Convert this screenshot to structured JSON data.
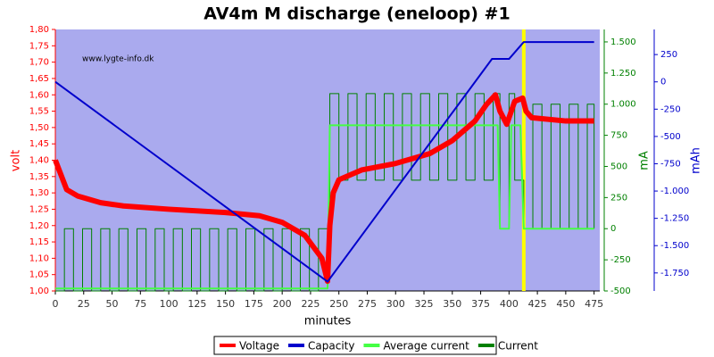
{
  "chart_data": {
    "type": "line",
    "title": "AV4m M discharge (eneloop) #1",
    "watermark": "www.lygte-info.dk",
    "xlabel": "minutes",
    "ylabel": "volt",
    "y2label": "mA",
    "y3label": "mAh",
    "xlim": [
      0,
      480
    ],
    "xticks": [
      0,
      25,
      50,
      75,
      100,
      125,
      150,
      175,
      200,
      225,
      250,
      275,
      300,
      325,
      350,
      375,
      400,
      425,
      450,
      475
    ],
    "ylim": [
      1.0,
      1.8
    ],
    "yticks": [
      {
        "value": 1.0,
        "label": "1,00"
      },
      {
        "value": 1.05,
        "label": "1,05"
      },
      {
        "value": 1.1,
        "label": "1,10"
      },
      {
        "value": 1.15,
        "label": "1,15"
      },
      {
        "value": 1.2,
        "label": "1,20"
      },
      {
        "value": 1.25,
        "label": "1,25"
      },
      {
        "value": 1.3,
        "label": "1,30"
      },
      {
        "value": 1.35,
        "label": "1,35"
      },
      {
        "value": 1.4,
        "label": "1,40"
      },
      {
        "value": 1.45,
        "label": "1,45"
      },
      {
        "value": 1.5,
        "label": "1,50"
      },
      {
        "value": 1.55,
        "label": "1,55"
      },
      {
        "value": 1.6,
        "label": "1,60"
      },
      {
        "value": 1.65,
        "label": "1,65"
      },
      {
        "value": 1.7,
        "label": "1,70"
      },
      {
        "value": 1.75,
        "label": "1,75"
      },
      {
        "value": 1.8,
        "label": "1,80"
      }
    ],
    "y2lim": [
      -500,
      1600
    ],
    "y2ticks": [
      -500,
      -250,
      0,
      250,
      500,
      750,
      {
        "value": 1000,
        "label": "1.000"
      },
      {
        "value": 1250,
        "label": "1.250"
      },
      {
        "value": 1500,
        "label": "1.500"
      }
    ],
    "y3lim": [
      -1915,
      480
    ],
    "y3ticks": [
      {
        "value": -1750,
        "label": "-1.750"
      },
      {
        "value": -1500,
        "label": "-1.500"
      },
      {
        "value": -1250,
        "label": "-1.250"
      },
      {
        "value": -1000,
        "label": "-1.000"
      },
      -750,
      -500,
      -250,
      0,
      250
    ],
    "vlines": [
      {
        "x": 413,
        "color": "#ffff00"
      }
    ],
    "series": [
      {
        "name": "Current",
        "color": "#008000",
        "axis": "y2",
        "step": true,
        "x": [
          0,
          8,
          16,
          24,
          32,
          40,
          48,
          56,
          64,
          72,
          80,
          88,
          96,
          104,
          112,
          120,
          128,
          136,
          144,
          152,
          160,
          168,
          176,
          184,
          192,
          200,
          208,
          216,
          224,
          232,
          242,
          250,
          258,
          266,
          274,
          282,
          290,
          298,
          306,
          314,
          322,
          330,
          338,
          346,
          354,
          362,
          370,
          378,
          386,
          392,
          400,
          405,
          413,
          421,
          429,
          437,
          445,
          453,
          461,
          469,
          475
        ],
        "values": [
          -500,
          0,
          -500,
          0,
          -500,
          0,
          -500,
          0,
          -500,
          0,
          -500,
          0,
          -500,
          0,
          -500,
          0,
          -500,
          0,
          -500,
          0,
          -500,
          0,
          -500,
          0,
          -500,
          0,
          -500,
          0,
          -500,
          0,
          1085,
          390,
          1085,
          390,
          1085,
          390,
          1085,
          390,
          1085,
          390,
          1085,
          390,
          1085,
          390,
          1085,
          390,
          1085,
          390,
          1085,
          0,
          1085,
          390,
          0,
          1000,
          0,
          1000,
          0,
          1000,
          0,
          1000,
          0
        ]
      },
      {
        "name": "Average current",
        "color": "#44ff44",
        "axis": "y2",
        "x": [
          0,
          240,
          242,
          390,
          392,
          400,
          402,
          410,
          413,
          475
        ],
        "values": [
          -480,
          -480,
          830,
          830,
          0,
          0,
          830,
          830,
          0,
          0
        ]
      },
      {
        "name": "Voltage",
        "color": "#ff0000",
        "axis": "y",
        "x": [
          0,
          10,
          20,
          40,
          60,
          100,
          150,
          180,
          200,
          220,
          235,
          240,
          242,
          245,
          250,
          270,
          300,
          330,
          350,
          370,
          380,
          388,
          392,
          398,
          405,
          412,
          415,
          420,
          450,
          475
        ],
        "values": [
          1.4,
          1.31,
          1.29,
          1.27,
          1.26,
          1.25,
          1.24,
          1.23,
          1.21,
          1.17,
          1.1,
          1.03,
          1.2,
          1.3,
          1.34,
          1.37,
          1.39,
          1.42,
          1.46,
          1.52,
          1.57,
          1.6,
          1.55,
          1.51,
          1.58,
          1.59,
          1.55,
          1.53,
          1.52,
          1.52
        ]
      },
      {
        "name": "Capacity",
        "color": "#0000cc",
        "axis": "y3",
        "x": [
          0,
          240,
          385,
          400,
          413,
          475
        ],
        "values": [
          0,
          -1830,
          210,
          210,
          365,
          365
        ]
      }
    ],
    "legend": [
      "Voltage",
      "Capacity",
      "Average current",
      "Current"
    ]
  }
}
